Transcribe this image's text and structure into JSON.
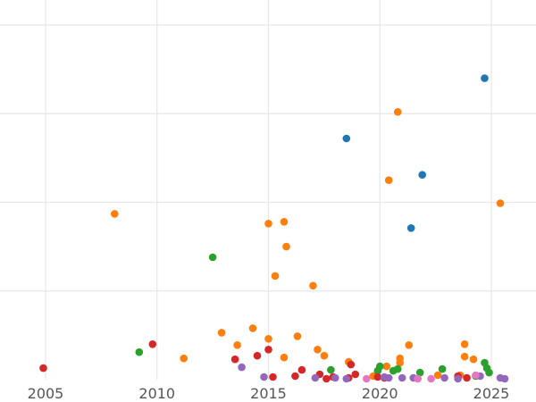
{
  "chart_data": {
    "type": "scatter",
    "title": "",
    "xlabel": "",
    "ylabel": "",
    "xlim": [
      2004.0,
      2026.0
    ],
    "ylim": [
      0,
      400
    ],
    "x_ticks": [
      2005,
      2010,
      2015,
      2020,
      2025
    ],
    "x_tick_labels": [
      "2005",
      "2010",
      "2015",
      "2020",
      "2025"
    ],
    "y_gridlines": [
      100,
      200,
      300,
      400
    ],
    "grid": true,
    "legend": "none",
    "series": [
      {
        "color": "#1f77b4",
        "points": [
          {
            "x": 2024.7,
            "y": 340
          },
          {
            "x": 2018.5,
            "y": 272
          },
          {
            "x": 2021.9,
            "y": 231
          },
          {
            "x": 2021.4,
            "y": 171
          }
        ]
      },
      {
        "color": "#ff7f0e",
        "points": [
          {
            "x": 2020.8,
            "y": 302
          },
          {
            "x": 2020.4,
            "y": 225
          },
          {
            "x": 2025.4,
            "y": 199
          },
          {
            "x": 2008.1,
            "y": 187
          },
          {
            "x": 2015.0,
            "y": 176
          },
          {
            "x": 2015.7,
            "y": 178
          },
          {
            "x": 2015.8,
            "y": 150
          },
          {
            "x": 2015.3,
            "y": 117
          },
          {
            "x": 2017.0,
            "y": 106
          },
          {
            "x": 2014.3,
            "y": 58
          },
          {
            "x": 2012.9,
            "y": 53
          },
          {
            "x": 2013.6,
            "y": 39
          },
          {
            "x": 2015.0,
            "y": 46
          },
          {
            "x": 2016.3,
            "y": 49
          },
          {
            "x": 2011.2,
            "y": 24
          },
          {
            "x": 2015.7,
            "y": 25
          },
          {
            "x": 2017.2,
            "y": 34
          },
          {
            "x": 2017.5,
            "y": 27
          },
          {
            "x": 2021.3,
            "y": 39
          },
          {
            "x": 2023.8,
            "y": 40
          },
          {
            "x": 2023.8,
            "y": 26
          },
          {
            "x": 2024.2,
            "y": 23
          },
          {
            "x": 2020.9,
            "y": 24
          },
          {
            "x": 2020.9,
            "y": 19
          },
          {
            "x": 2018.6,
            "y": 20
          },
          {
            "x": 2020.3,
            "y": 15
          },
          {
            "x": 2022.6,
            "y": 5
          },
          {
            "x": 2023.6,
            "y": 5
          },
          {
            "x": 2019.7,
            "y": 4
          }
        ]
      },
      {
        "color": "#2ca02c",
        "points": [
          {
            "x": 2012.5,
            "y": 138
          },
          {
            "x": 2009.2,
            "y": 31
          },
          {
            "x": 2017.8,
            "y": 11
          },
          {
            "x": 2020.0,
            "y": 15
          },
          {
            "x": 2019.9,
            "y": 10
          },
          {
            "x": 2020.6,
            "y": 10
          },
          {
            "x": 2020.8,
            "y": 12
          },
          {
            "x": 2021.8,
            "y": 8
          },
          {
            "x": 2022.8,
            "y": 12
          },
          {
            "x": 2024.7,
            "y": 19
          },
          {
            "x": 2024.8,
            "y": 13
          },
          {
            "x": 2024.9,
            "y": 8
          },
          {
            "x": 2024.3,
            "y": 4
          }
        ]
      },
      {
        "color": "#d62728",
        "points": [
          {
            "x": 2004.9,
            "y": 13
          },
          {
            "x": 2009.8,
            "y": 40
          },
          {
            "x": 2013.5,
            "y": 23
          },
          {
            "x": 2014.5,
            "y": 27
          },
          {
            "x": 2015.0,
            "y": 34
          },
          {
            "x": 2018.7,
            "y": 17
          },
          {
            "x": 2016.5,
            "y": 11
          },
          {
            "x": 2017.3,
            "y": 6
          },
          {
            "x": 2018.9,
            "y": 6
          },
          {
            "x": 2015.2,
            "y": 3
          },
          {
            "x": 2016.2,
            "y": 4
          },
          {
            "x": 2017.9,
            "y": 3
          },
          {
            "x": 2018.6,
            "y": 2
          },
          {
            "x": 2019.9,
            "y": 3
          },
          {
            "x": 2020.2,
            "y": 2
          },
          {
            "x": 2023.5,
            "y": 4
          },
          {
            "x": 2017.6,
            "y": 1
          },
          {
            "x": 2023.9,
            "y": 2
          }
        ]
      },
      {
        "color": "#9467bd",
        "points": [
          {
            "x": 2013.8,
            "y": 14
          },
          {
            "x": 2014.8,
            "y": 3
          },
          {
            "x": 2017.1,
            "y": 2
          },
          {
            "x": 2018.0,
            "y": 2
          },
          {
            "x": 2018.5,
            "y": 1
          },
          {
            "x": 2020.2,
            "y": 3
          },
          {
            "x": 2020.4,
            "y": 2
          },
          {
            "x": 2021.0,
            "y": 2
          },
          {
            "x": 2021.5,
            "y": 2
          },
          {
            "x": 2022.9,
            "y": 2
          },
          {
            "x": 2024.5,
            "y": 4
          },
          {
            "x": 2025.4,
            "y": 2
          },
          {
            "x": 2025.6,
            "y": 1
          },
          {
            "x": 2023.5,
            "y": 1
          }
        ]
      },
      {
        "color": "#e377c2",
        "points": [
          {
            "x": 2022.3,
            "y": 1
          },
          {
            "x": 2024.3,
            "y": 5
          },
          {
            "x": 2021.7,
            "y": 1
          },
          {
            "x": 2019.4,
            "y": 1
          }
        ]
      }
    ]
  }
}
